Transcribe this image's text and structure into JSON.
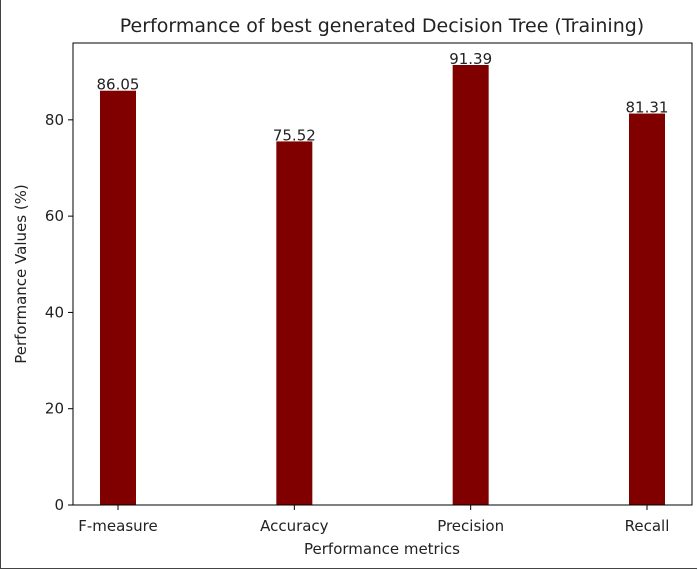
{
  "chart_data": {
    "type": "bar",
    "title": "Performance of best generated Decision Tree (Training)",
    "xlabel": "Performance metrics",
    "ylabel": "Performance Values (%)",
    "categories": [
      "F-measure",
      "Accuracy",
      "Precision",
      "Recall"
    ],
    "values": [
      86.05,
      75.52,
      91.39,
      81.31
    ],
    "data_labels": [
      "86.05",
      "75.52",
      "91.39",
      "81.31"
    ],
    "ylim": [
      0,
      95.96
    ],
    "yticks": [
      0,
      20,
      40,
      60,
      80
    ],
    "grid": false,
    "bar_color": "#800000"
  }
}
